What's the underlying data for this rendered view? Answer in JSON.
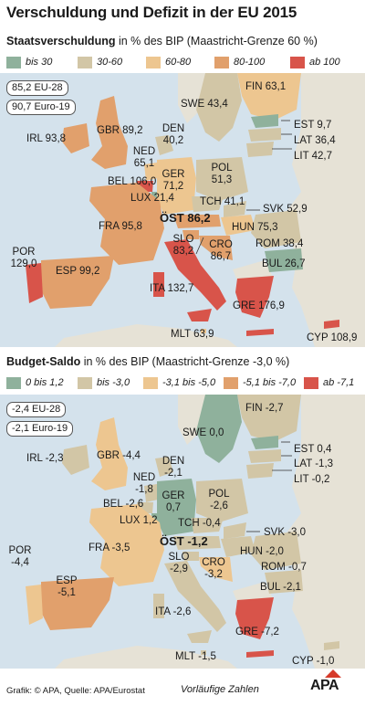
{
  "title": "Verschuldung und Defizit in der EU 2015",
  "colors": {
    "sea": "#d4e2ec",
    "nonEU": "#e6e2d6",
    "c1": "#8fb19c",
    "c2": "#d2c6a6",
    "c3": "#edc690",
    "c4": "#e1a06c",
    "c5": "#d8544a"
  },
  "debt": {
    "heading_bold": "Staatsverschuldung",
    "heading_rest": " in % des BIP (Maastricht-Grenze 60 %)",
    "legend": [
      "bis 30",
      "30-60",
      "60-80",
      "80-100",
      "ab 100"
    ],
    "averages": [
      "85,2 EU-28",
      "90,7 Euro-19"
    ],
    "labels": {
      "fin": "FIN 63,1",
      "swe": "SWE 43,4",
      "est": "EST 9,7",
      "lat": "LAT 36,4",
      "lit": "LIT 42,7",
      "irl": "IRL 93,8",
      "gbr": "GBR 89,2",
      "den1": "DEN",
      "den2": "40,2",
      "ned1": "NED",
      "ned2": "65,1",
      "bel": "BEL 106,0",
      "lux": "LUX 21,4",
      "ger1": "GER",
      "ger2": "71,2",
      "pol1": "POL",
      "pol2": "51,3",
      "tch": "TCH 41,1",
      "fra": "FRA 95,8",
      "ost": "ÖST 86,2",
      "svk": "SVK 52,9",
      "hun": "HUN 75,3",
      "por1": "POR",
      "por2": "129,0",
      "slo1": "SLO",
      "slo2": "83,2",
      "cro1": "CRO",
      "cro2": "86,7",
      "rom": "ROM 38,4",
      "esp": "ESP 99,2",
      "bul": "BUL 26,7",
      "ita": "ITA 132,7",
      "gre": "GRE 176,9",
      "mlt": "MLT 63,9",
      "cyp": "CYP 108,9"
    }
  },
  "deficit": {
    "heading_bold": "Budget-Saldo",
    "heading_rest": " in % des BIP (Maastricht-Grenze -3,0 %)",
    "legend": [
      "0 bis 1,2",
      "bis -3,0",
      "-3,1 bis -5,0",
      "-5,1 bis -7,0",
      "ab -7,1"
    ],
    "averages": [
      "-2,4 EU-28",
      "-2,1 Euro-19"
    ],
    "labels": {
      "fin": "FIN -2,7",
      "swe": "SWE 0,0",
      "est": "EST 0,4",
      "lat": "LAT -1,3",
      "lit": "LIT -0,2",
      "irl": "IRL -2,3",
      "gbr": "GBR -4,4",
      "den1": "DEN",
      "den2": "-2,1",
      "ned1": "NED",
      "ned2": "-1,8",
      "bel": "BEL -2,6",
      "lux": "LUX 1,2",
      "ger1": "GER",
      "ger2": "0,7",
      "pol1": "POL",
      "pol2": "-2,6",
      "tch": "TCH -0,4",
      "fra": "FRA -3,5",
      "ost": "ÖST -1,2",
      "svk": "SVK -3,0",
      "hun": "HUN -2,0",
      "por1": "POR",
      "por2": "-4,4",
      "slo1": "SLO",
      "slo2": "-2,9",
      "cro1": "CRO",
      "cro2": "-3,2",
      "rom": "ROM -0,7",
      "esp1": "ESP",
      "esp2": "-5,1",
      "bul": "BUL -2,1",
      "ita": "ITA -2,6",
      "gre": "GRE -7,2",
      "mlt": "MLT -1,5",
      "cyp": "CYP -1,0"
    }
  },
  "footer": {
    "source": "Grafik: © APA, Quelle: APA/Eurostat",
    "note": "Vorläufige Zahlen",
    "logo": "APA"
  }
}
